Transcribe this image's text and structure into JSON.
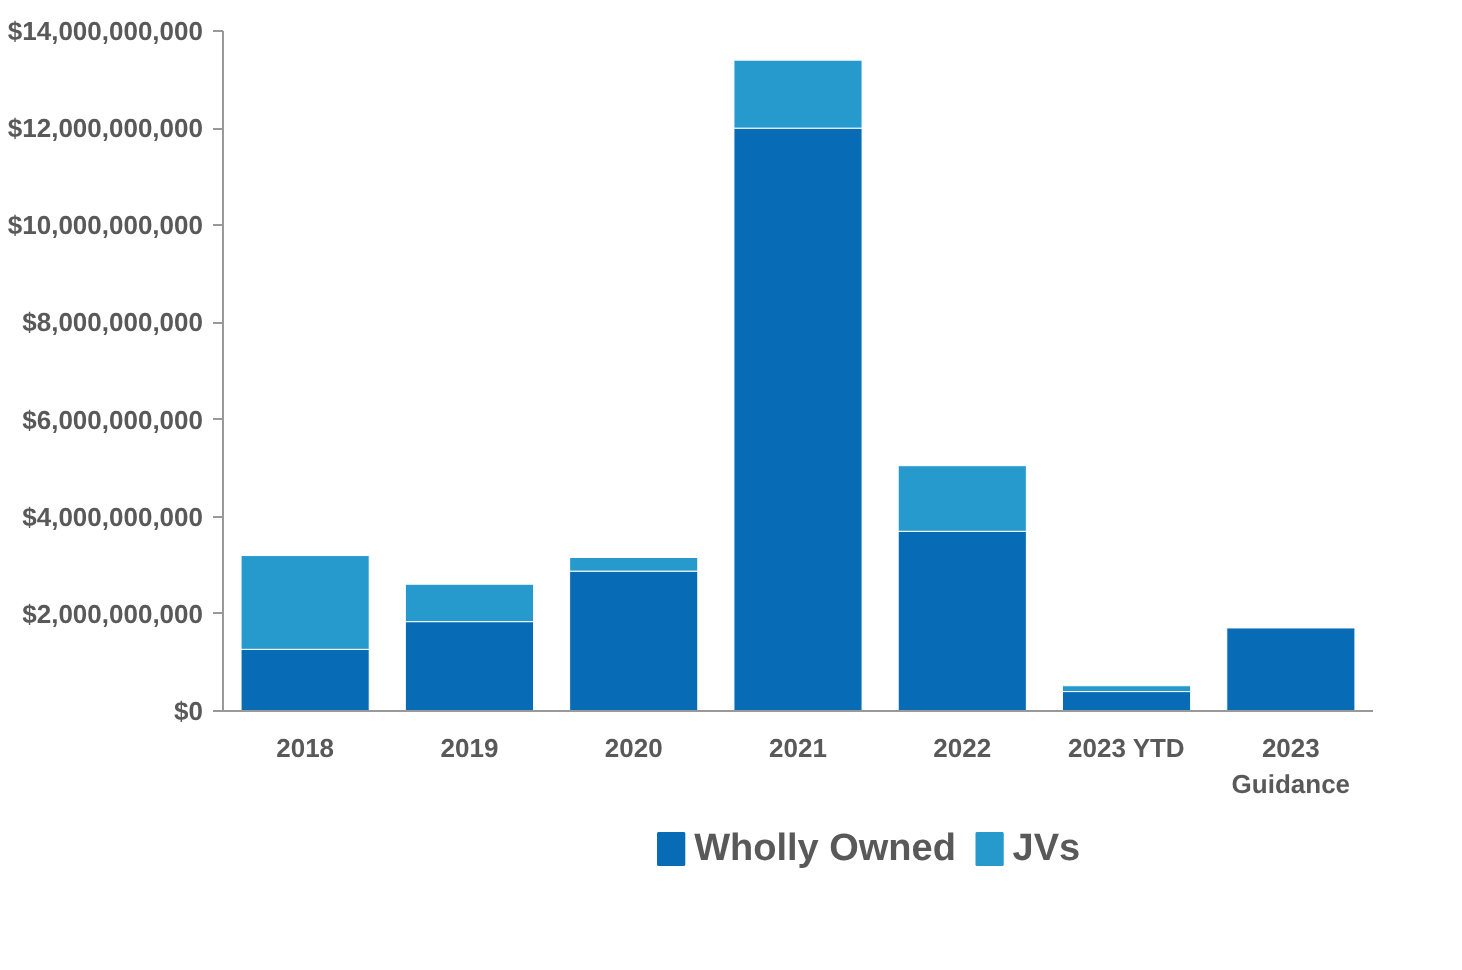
{
  "chart_data": {
    "type": "bar",
    "stacked": true,
    "categories": [
      "2018",
      "2019",
      "2020",
      "2021",
      "2022",
      "2023 YTD",
      "2023\nGuidance"
    ],
    "series": [
      {
        "name": "Wholly Owned",
        "color": "#086bb5",
        "values": [
          1270000000,
          1840000000,
          2880000000,
          12000000000,
          3700000000,
          400000000,
          1710000000
        ]
      },
      {
        "name": "JVs",
        "color": "#279acd",
        "values": [
          1930000000,
          770000000,
          280000000,
          1400000000,
          1350000000,
          120000000,
          null
        ]
      }
    ],
    "ylim": [
      0,
      14000000000
    ],
    "yticks": [
      {
        "value": 0,
        "label": "$0"
      },
      {
        "value": 2000000000,
        "label": "$2,000,000,000"
      },
      {
        "value": 4000000000,
        "label": "$4,000,000,000"
      },
      {
        "value": 6000000000,
        "label": "$6,000,000,000"
      },
      {
        "value": 8000000000,
        "label": "$8,000,000,000"
      },
      {
        "value": 10000000000,
        "label": "$10,000,000,000"
      },
      {
        "value": 12000000000,
        "label": "$12,000,000,000"
      },
      {
        "value": 14000000000,
        "label": "$14,000,000,000"
      }
    ],
    "grid": false,
    "legend": "bottom"
  }
}
